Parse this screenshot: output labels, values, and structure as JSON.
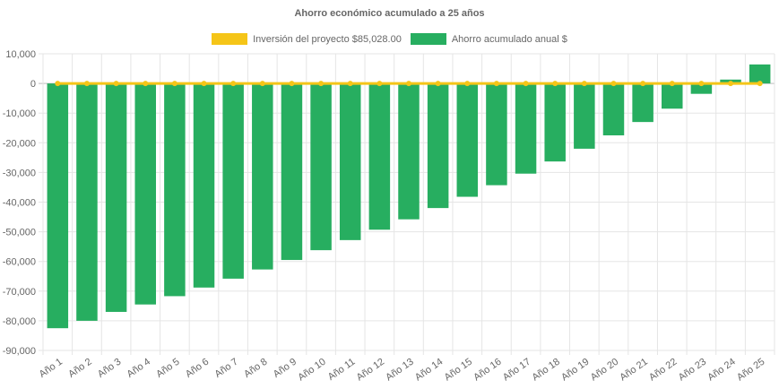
{
  "chart_data": {
    "type": "bar",
    "title": "Ahorro económico acumulado a 25 años",
    "categories": [
      "Año 1",
      "Año 2",
      "Año 3",
      "Año 4",
      "Año 5",
      "Año 6",
      "Año 7",
      "Año 8",
      "Año 9",
      "Año 10",
      "Año 11",
      "Año 12",
      "Año 13",
      "Año 14",
      "Año 15",
      "Año 16",
      "Año 17",
      "Año 18",
      "Año 19",
      "Año 20",
      "Año 21",
      "Año 22",
      "Año 23",
      "Año 24",
      "Año 25"
    ],
    "series": [
      {
        "name": "Inversión del proyecto $85,028.00",
        "type": "line",
        "color": "#f5c518",
        "values": [
          0,
          0,
          0,
          0,
          0,
          0,
          0,
          0,
          0,
          0,
          0,
          0,
          0,
          0,
          0,
          0,
          0,
          0,
          0,
          0,
          0,
          0,
          0,
          0,
          0
        ]
      },
      {
        "name": "Ahorro acumulado anual $",
        "type": "bar",
        "color": "#27ae60",
        "values": [
          -82500,
          -80000,
          -77000,
          -74500,
          -71700,
          -68800,
          -65800,
          -62700,
          -59500,
          -56200,
          -52800,
          -49300,
          -45800,
          -42000,
          -38200,
          -34300,
          -30400,
          -26300,
          -22000,
          -17500,
          -13000,
          -8500,
          -3500,
          1300,
          6400
        ]
      }
    ],
    "ylim": [
      -90000,
      10000
    ],
    "yticks": [
      "10,000",
      "0",
      "-10,000",
      "-20,000",
      "-30,000",
      "-40,000",
      "-50,000",
      "-60,000",
      "-70,000",
      "-80,000",
      "-90,000"
    ],
    "grid": true,
    "legend_position": "top-center"
  }
}
